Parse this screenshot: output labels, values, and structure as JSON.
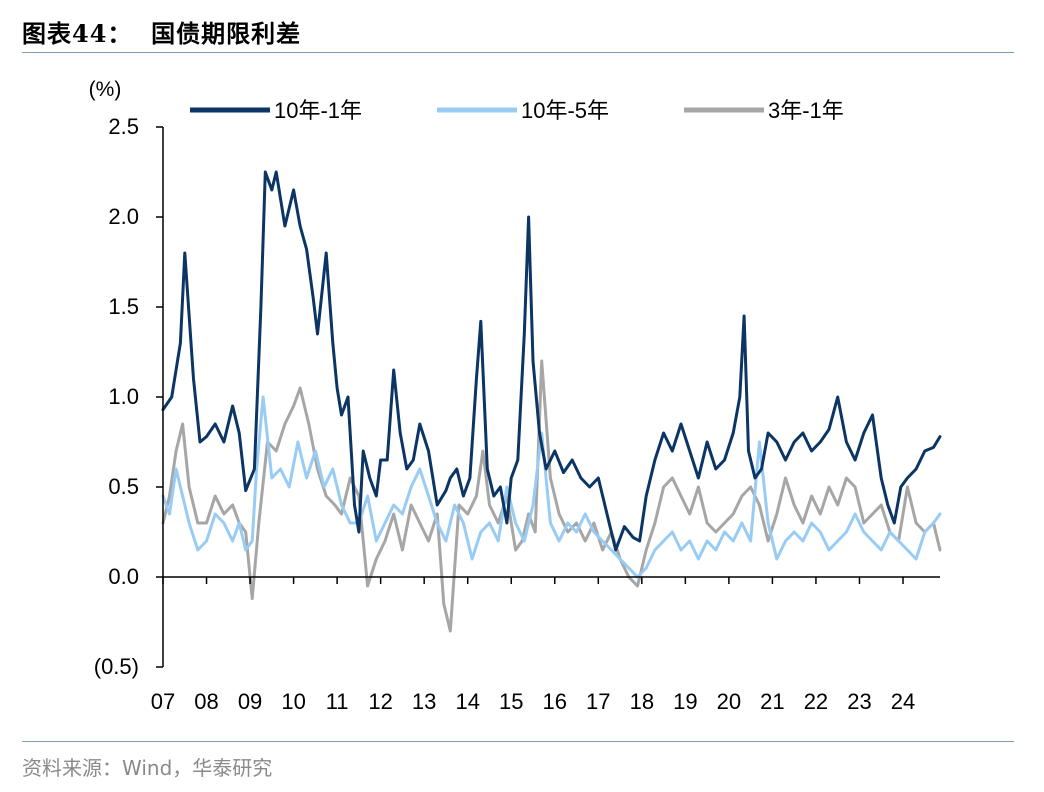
{
  "title": "图表44：  国债期限利差",
  "source": "资料来源：Wind，华泰研究",
  "colors": {
    "series1": "#0b3565",
    "series2": "#99ccf5",
    "series3": "#a6a6a6",
    "rule": "#7f9cb8",
    "source": "#8a8a8a"
  },
  "chart_data": {
    "type": "line",
    "ylabel": "(%)",
    "ylim": [
      -0.5,
      2.5
    ],
    "yticks": [
      -0.5,
      0.0,
      0.5,
      1.0,
      1.5,
      2.0,
      2.5
    ],
    "ytick_labels": [
      "(0.5)",
      "0.0",
      "0.5",
      "1.0",
      "1.5",
      "2.0",
      "2.5"
    ],
    "xlim": [
      2007.0,
      2024.85
    ],
    "xticks": [
      2007,
      2008,
      2009,
      2010,
      2011,
      2012,
      2013,
      2014,
      2015,
      2016,
      2017,
      2018,
      2019,
      2020,
      2021,
      2022,
      2023,
      2024
    ],
    "xtick_labels": [
      "07",
      "08",
      "09",
      "10",
      "11",
      "12",
      "13",
      "14",
      "15",
      "16",
      "17",
      "18",
      "19",
      "20",
      "21",
      "22",
      "23",
      "24"
    ],
    "legend_position": "top",
    "grid": false,
    "series": [
      {
        "name": "10年-1年",
        "x": [
          2007.0,
          2007.2,
          2007.4,
          2007.5,
          2007.7,
          2007.85,
          2008.0,
          2008.2,
          2008.4,
          2008.6,
          2008.75,
          2008.9,
          2009.1,
          2009.25,
          2009.35,
          2009.5,
          2009.6,
          2009.8,
          2010.0,
          2010.15,
          2010.3,
          2010.45,
          2010.55,
          2010.75,
          2010.9,
          2011.0,
          2011.1,
          2011.25,
          2011.4,
          2011.5,
          2011.6,
          2011.75,
          2011.9,
          2012.0,
          2012.15,
          2012.3,
          2012.45,
          2012.6,
          2012.75,
          2012.9,
          2013.1,
          2013.3,
          2013.5,
          2013.6,
          2013.75,
          2013.9,
          2014.05,
          2014.2,
          2014.3,
          2014.45,
          2014.6,
          2014.75,
          2014.9,
          2015.0,
          2015.15,
          2015.3,
          2015.4,
          2015.5,
          2015.65,
          2015.8,
          2016.0,
          2016.2,
          2016.4,
          2016.6,
          2016.8,
          2017.0,
          2017.2,
          2017.4,
          2017.6,
          2017.8,
          2017.95,
          2018.1,
          2018.3,
          2018.5,
          2018.7,
          2018.9,
          2019.1,
          2019.3,
          2019.5,
          2019.7,
          2019.9,
          2020.1,
          2020.25,
          2020.35,
          2020.45,
          2020.6,
          2020.75,
          2020.9,
          2021.1,
          2021.3,
          2021.5,
          2021.7,
          2021.9,
          2022.1,
          2022.3,
          2022.5,
          2022.7,
          2022.9,
          2023.1,
          2023.3,
          2023.5,
          2023.65,
          2023.8,
          2023.95,
          2024.1,
          2024.3,
          2024.5,
          2024.7,
          2024.85
        ],
        "values": [
          0.93,
          1.0,
          1.3,
          1.8,
          1.1,
          0.75,
          0.78,
          0.85,
          0.75,
          0.95,
          0.8,
          0.48,
          0.6,
          1.5,
          2.25,
          2.15,
          2.25,
          1.95,
          2.15,
          1.95,
          1.82,
          1.55,
          1.35,
          1.8,
          1.3,
          1.05,
          0.9,
          1.0,
          0.4,
          0.25,
          0.7,
          0.55,
          0.45,
          0.65,
          0.65,
          1.15,
          0.8,
          0.6,
          0.65,
          0.85,
          0.7,
          0.4,
          0.48,
          0.55,
          0.6,
          0.45,
          0.55,
          1.1,
          1.42,
          0.6,
          0.45,
          0.5,
          0.3,
          0.55,
          0.65,
          1.35,
          2.0,
          1.2,
          0.8,
          0.6,
          0.7,
          0.58,
          0.65,
          0.55,
          0.5,
          0.55,
          0.35,
          0.15,
          0.28,
          0.22,
          0.2,
          0.45,
          0.65,
          0.8,
          0.7,
          0.85,
          0.7,
          0.55,
          0.75,
          0.6,
          0.65,
          0.8,
          1.0,
          1.45,
          0.7,
          0.55,
          0.6,
          0.8,
          0.75,
          0.65,
          0.75,
          0.8,
          0.7,
          0.75,
          0.82,
          1.0,
          0.75,
          0.65,
          0.8,
          0.9,
          0.55,
          0.4,
          0.3,
          0.5,
          0.55,
          0.6,
          0.7,
          0.72,
          0.78
        ]
      },
      {
        "name": "10年-5年",
        "x": [
          2007.0,
          2007.15,
          2007.3,
          2007.45,
          2007.6,
          2007.8,
          2008.0,
          2008.2,
          2008.4,
          2008.6,
          2008.75,
          2008.9,
          2009.05,
          2009.15,
          2009.3,
          2009.5,
          2009.7,
          2009.9,
          2010.1,
          2010.3,
          2010.5,
          2010.7,
          2010.9,
          2011.1,
          2011.3,
          2011.5,
          2011.7,
          2011.9,
          2012.1,
          2012.3,
          2012.5,
          2012.7,
          2012.9,
          2013.1,
          2013.3,
          2013.5,
          2013.7,
          2013.9,
          2014.1,
          2014.3,
          2014.5,
          2014.7,
          2014.9,
          2015.1,
          2015.3,
          2015.5,
          2015.7,
          2015.9,
          2016.1,
          2016.3,
          2016.5,
          2016.7,
          2016.9,
          2017.1,
          2017.3,
          2017.5,
          2017.7,
          2017.9,
          2018.1,
          2018.3,
          2018.5,
          2018.7,
          2018.9,
          2019.1,
          2019.3,
          2019.5,
          2019.7,
          2019.9,
          2020.1,
          2020.3,
          2020.5,
          2020.7,
          2020.9,
          2021.1,
          2021.3,
          2021.5,
          2021.7,
          2021.9,
          2022.1,
          2022.3,
          2022.5,
          2022.7,
          2022.9,
          2023.1,
          2023.3,
          2023.5,
          2023.7,
          2023.9,
          2024.1,
          2024.3,
          2024.5,
          2024.7,
          2024.85
        ],
        "values": [
          0.45,
          0.35,
          0.6,
          0.45,
          0.3,
          0.15,
          0.2,
          0.35,
          0.3,
          0.2,
          0.3,
          0.15,
          0.2,
          0.6,
          1.0,
          0.55,
          0.6,
          0.5,
          0.75,
          0.55,
          0.7,
          0.5,
          0.6,
          0.4,
          0.3,
          0.3,
          0.45,
          0.2,
          0.3,
          0.4,
          0.35,
          0.5,
          0.6,
          0.45,
          0.3,
          0.2,
          0.4,
          0.3,
          0.1,
          0.25,
          0.3,
          0.2,
          0.5,
          0.3,
          0.2,
          0.4,
          0.8,
          0.3,
          0.2,
          0.3,
          0.25,
          0.35,
          0.25,
          0.2,
          0.15,
          0.1,
          0.05,
          0.0,
          0.05,
          0.15,
          0.2,
          0.25,
          0.15,
          0.2,
          0.1,
          0.2,
          0.15,
          0.25,
          0.2,
          0.3,
          0.2,
          0.75,
          0.3,
          0.1,
          0.2,
          0.25,
          0.2,
          0.3,
          0.25,
          0.15,
          0.2,
          0.25,
          0.35,
          0.25,
          0.2,
          0.15,
          0.25,
          0.2,
          0.15,
          0.1,
          0.25,
          0.3,
          0.35
        ]
      },
      {
        "name": "3年-1年",
        "x": [
          2007.0,
          2007.15,
          2007.3,
          2007.45,
          2007.6,
          2007.8,
          2008.0,
          2008.2,
          2008.4,
          2008.6,
          2008.75,
          2008.9,
          2009.05,
          2009.2,
          2009.4,
          2009.6,
          2009.8,
          2010.0,
          2010.15,
          2010.35,
          2010.55,
          2010.75,
          2010.95,
          2011.1,
          2011.3,
          2011.5,
          2011.7,
          2011.9,
          2012.1,
          2012.3,
          2012.5,
          2012.7,
          2012.9,
          2013.1,
          2013.3,
          2013.45,
          2013.6,
          2013.8,
          2014.0,
          2014.2,
          2014.35,
          2014.5,
          2014.7,
          2014.9,
          2015.1,
          2015.25,
          2015.4,
          2015.55,
          2015.7,
          2015.9,
          2016.1,
          2016.3,
          2016.5,
          2016.7,
          2016.9,
          2017.1,
          2017.3,
          2017.5,
          2017.7,
          2017.9,
          2018.1,
          2018.3,
          2018.5,
          2018.7,
          2018.9,
          2019.1,
          2019.3,
          2019.5,
          2019.7,
          2019.9,
          2020.1,
          2020.3,
          2020.5,
          2020.7,
          2020.9,
          2021.1,
          2021.3,
          2021.5,
          2021.7,
          2021.9,
          2022.1,
          2022.3,
          2022.5,
          2022.7,
          2022.9,
          2023.1,
          2023.3,
          2023.5,
          2023.7,
          2023.9,
          2024.1,
          2024.3,
          2024.5,
          2024.7,
          2024.85
        ],
        "values": [
          0.3,
          0.45,
          0.7,
          0.85,
          0.5,
          0.3,
          0.3,
          0.45,
          0.35,
          0.4,
          0.3,
          0.25,
          -0.12,
          0.3,
          0.75,
          0.7,
          0.85,
          0.95,
          1.05,
          0.85,
          0.6,
          0.45,
          0.4,
          0.35,
          0.55,
          0.45,
          -0.05,
          0.1,
          0.2,
          0.35,
          0.15,
          0.4,
          0.3,
          0.2,
          0.35,
          -0.15,
          -0.3,
          0.4,
          0.35,
          0.45,
          0.7,
          0.4,
          0.3,
          0.45,
          0.15,
          0.2,
          0.35,
          0.25,
          1.2,
          0.55,
          0.35,
          0.25,
          0.3,
          0.2,
          0.3,
          0.15,
          0.25,
          0.1,
          0.0,
          -0.05,
          0.15,
          0.3,
          0.5,
          0.55,
          0.45,
          0.35,
          0.5,
          0.3,
          0.25,
          0.3,
          0.35,
          0.45,
          0.5,
          0.4,
          0.2,
          0.35,
          0.55,
          0.4,
          0.3,
          0.45,
          0.35,
          0.5,
          0.4,
          0.55,
          0.5,
          0.3,
          0.35,
          0.4,
          0.25,
          0.2,
          0.5,
          0.3,
          0.25,
          0.3,
          0.15
        ]
      }
    ]
  }
}
